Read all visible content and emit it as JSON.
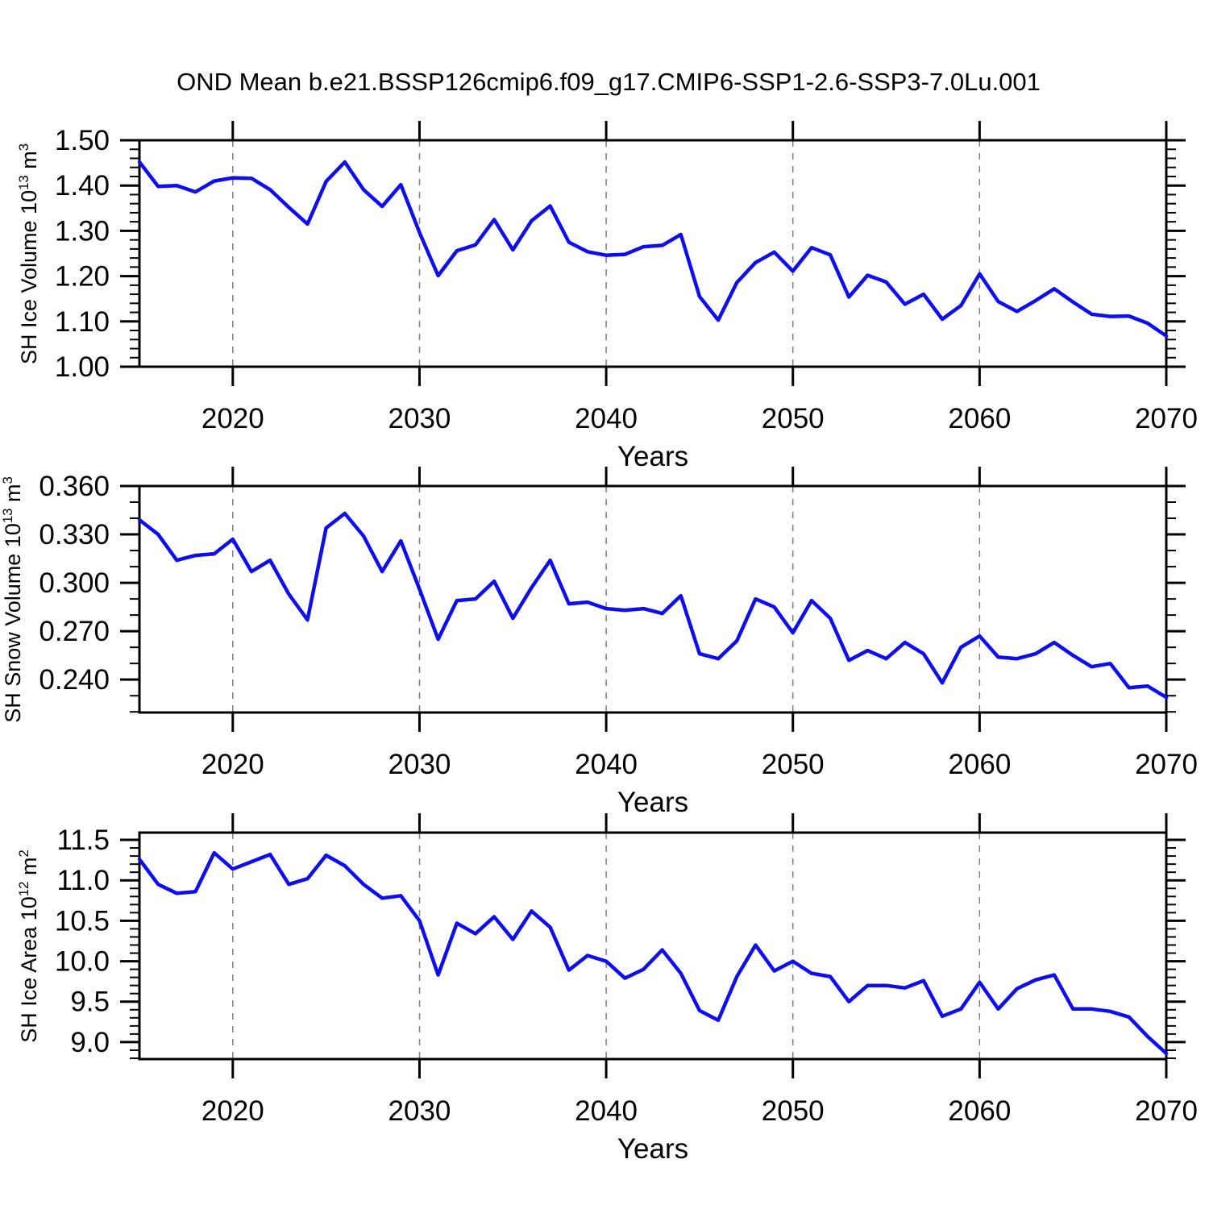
{
  "title": "OND Mean b.e21.BSSP126cmip6.f09_g17.CMIP6-SSP1-2.6-SSP3-7.0Lu.001",
  "line_color": "#0d0df0",
  "grid_color": "#7f7f7f",
  "chart_data": [
    {
      "type": "line",
      "id": "ice-volume",
      "ylabel": "SH Ice Volume 10^{13} m^{3}",
      "xlabel": "Years",
      "xlim": [
        2015,
        2070
      ],
      "ylim": [
        1.0,
        1.5
      ],
      "xticks": [
        2020,
        2030,
        2040,
        2050,
        2060,
        2070
      ],
      "xtick_labels": [
        "2020",
        "2030",
        "2040",
        "2050",
        "2060",
        "2070"
      ],
      "x_minor_step": 2,
      "yticks": [
        1.0,
        1.1,
        1.2,
        1.3,
        1.4,
        1.5
      ],
      "ytick_labels": [
        "1.00",
        "1.10",
        "1.20",
        "1.30",
        "1.40",
        "1.50"
      ],
      "y_minor_step": 0.02,
      "grid_x": [
        2020,
        2030,
        2040,
        2050,
        2060
      ],
      "grid_on": "vertical-dashed",
      "legend": "none",
      "x": [
        2015,
        2016,
        2017,
        2018,
        2019,
        2020,
        2021,
        2022,
        2023,
        2024,
        2025,
        2026,
        2027,
        2028,
        2029,
        2030,
        2031,
        2032,
        2033,
        2034,
        2035,
        2036,
        2037,
        2038,
        2039,
        2040,
        2041,
        2042,
        2043,
        2044,
        2045,
        2046,
        2047,
        2048,
        2049,
        2050,
        2051,
        2052,
        2053,
        2054,
        2055,
        2056,
        2057,
        2058,
        2059,
        2060,
        2061,
        2062,
        2063,
        2064,
        2065,
        2066,
        2067,
        2068,
        2069,
        2070
      ],
      "values": [
        1.452,
        1.398,
        1.4,
        1.386,
        1.41,
        1.417,
        1.416,
        1.391,
        1.352,
        1.315,
        1.409,
        1.452,
        1.391,
        1.354,
        1.402,
        1.296,
        1.201,
        1.256,
        1.269,
        1.325,
        1.258,
        1.322,
        1.355,
        1.275,
        1.254,
        1.246,
        1.248,
        1.265,
        1.268,
        1.292,
        1.155,
        1.103,
        1.186,
        1.23,
        1.253,
        1.211,
        1.263,
        1.247,
        1.154,
        1.202,
        1.187,
        1.138,
        1.16,
        1.105,
        1.135,
        1.205,
        1.144,
        1.122,
        1.146,
        1.172,
        1.143,
        1.116,
        1.111,
        1.112,
        1.096,
        1.068
      ]
    },
    {
      "type": "line",
      "id": "snow-volume",
      "ylabel": "SH Snow Volume 10^{13} m^{3}",
      "xlabel": "Years",
      "xlim": [
        2015,
        2070
      ],
      "ylim": [
        0.2196,
        0.36
      ],
      "xticks": [
        2020,
        2030,
        2040,
        2050,
        2060,
        2070
      ],
      "xtick_labels": [
        "2020",
        "2030",
        "2040",
        "2050",
        "2060",
        "2070"
      ],
      "x_minor_step": 2,
      "yticks": [
        0.24,
        0.27,
        0.3,
        0.33,
        0.36
      ],
      "ytick_labels": [
        "0.240",
        "0.270",
        "0.300",
        "0.330",
        "0.360"
      ],
      "y_minor_step": 0.01,
      "grid_x": [
        2020,
        2030,
        2040,
        2050,
        2060
      ],
      "grid_on": "vertical-dashed",
      "legend": "none",
      "x": [
        2015,
        2016,
        2017,
        2018,
        2019,
        2020,
        2021,
        2022,
        2023,
        2024,
        2025,
        2026,
        2027,
        2028,
        2029,
        2030,
        2031,
        2032,
        2033,
        2034,
        2035,
        2036,
        2037,
        2038,
        2039,
        2040,
        2041,
        2042,
        2043,
        2044,
        2045,
        2046,
        2047,
        2048,
        2049,
        2050,
        2051,
        2052,
        2053,
        2054,
        2055,
        2056,
        2057,
        2058,
        2059,
        2060,
        2061,
        2062,
        2063,
        2064,
        2065,
        2066,
        2067,
        2068,
        2069,
        2070
      ],
      "values": [
        0.339,
        0.33,
        0.314,
        0.317,
        0.318,
        0.327,
        0.307,
        0.314,
        0.293,
        0.277,
        0.334,
        0.343,
        0.329,
        0.307,
        0.326,
        0.296,
        0.265,
        0.289,
        0.29,
        0.301,
        0.278,
        0.297,
        0.314,
        0.287,
        0.288,
        0.284,
        0.283,
        0.284,
        0.281,
        0.292,
        0.256,
        0.253,
        0.264,
        0.29,
        0.285,
        0.269,
        0.289,
        0.278,
        0.252,
        0.258,
        0.253,
        0.263,
        0.256,
        0.238,
        0.26,
        0.267,
        0.254,
        0.253,
        0.256,
        0.263,
        0.255,
        0.248,
        0.25,
        0.235,
        0.236,
        0.229
      ]
    },
    {
      "type": "line",
      "id": "ice-area",
      "ylabel": "SH Ice Area 10^{12} m^{2}",
      "xlabel": "Years",
      "xlim": [
        2015,
        2070
      ],
      "ylim": [
        8.79,
        11.59
      ],
      "xticks": [
        2020,
        2030,
        2040,
        2050,
        2060,
        2070
      ],
      "xtick_labels": [
        "2020",
        "2030",
        "2040",
        "2050",
        "2060",
        "2070"
      ],
      "x_minor_step": 2,
      "yticks": [
        9.0,
        9.5,
        10.0,
        10.5,
        11.0,
        11.5
      ],
      "ytick_labels": [
        "9.0",
        "9.5",
        "10.0",
        "10.5",
        "11.0",
        "11.5"
      ],
      "y_minor_step": 0.1,
      "grid_x": [
        2020,
        2030,
        2040,
        2050,
        2060
      ],
      "grid_on": "vertical-dashed",
      "legend": "none",
      "x": [
        2015,
        2016,
        2017,
        2018,
        2019,
        2020,
        2021,
        2022,
        2023,
        2024,
        2025,
        2026,
        2027,
        2028,
        2029,
        2030,
        2031,
        2032,
        2033,
        2034,
        2035,
        2036,
        2037,
        2038,
        2039,
        2040,
        2041,
        2042,
        2043,
        2044,
        2045,
        2046,
        2047,
        2048,
        2049,
        2050,
        2051,
        2052,
        2053,
        2054,
        2055,
        2056,
        2057,
        2058,
        2059,
        2060,
        2061,
        2062,
        2063,
        2064,
        2065,
        2066,
        2067,
        2068,
        2069,
        2070
      ],
      "values": [
        11.26,
        10.95,
        10.84,
        10.86,
        11.34,
        11.14,
        11.23,
        11.32,
        10.95,
        11.02,
        11.31,
        11.18,
        10.95,
        10.78,
        10.81,
        10.5,
        9.83,
        10.47,
        10.34,
        10.55,
        10.27,
        10.62,
        10.42,
        9.89,
        10.07,
        10.0,
        9.79,
        9.9,
        10.14,
        9.85,
        9.39,
        9.27,
        9.81,
        10.2,
        9.88,
        10.0,
        9.85,
        9.81,
        9.5,
        9.7,
        9.7,
        9.67,
        9.76,
        9.32,
        9.41,
        9.74,
        9.41,
        9.66,
        9.77,
        9.83,
        9.41,
        9.41,
        9.38,
        9.31,
        9.07,
        8.86
      ]
    }
  ]
}
